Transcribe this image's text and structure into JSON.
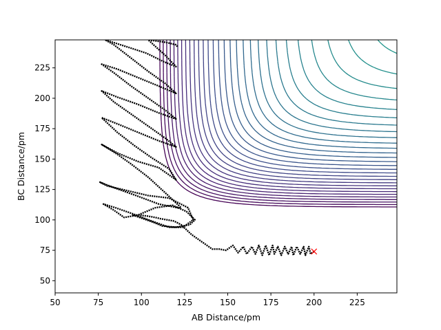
{
  "chart_data": {
    "type": "contour",
    "title": "",
    "xlabel": "AB Distance/pm",
    "ylabel": "BC Distance/pm",
    "xlim": [
      50,
      248
    ],
    "ylim": [
      40,
      248
    ],
    "xticks": [
      50,
      75,
      100,
      125,
      150,
      175,
      200,
      225
    ],
    "yticks": [
      50,
      75,
      100,
      125,
      150,
      175,
      200,
      225
    ],
    "colormap": "viridis",
    "contour_levels": 55,
    "series": [
      {
        "kind": "trajectory",
        "style": "black dotted line",
        "points": [
          [
            200,
            74
          ],
          [
            198,
            72
          ],
          [
            197,
            78
          ],
          [
            195,
            71
          ],
          [
            194,
            78
          ],
          [
            192,
            72
          ],
          [
            190,
            78
          ],
          [
            188,
            71
          ],
          [
            187,
            78
          ],
          [
            185,
            72
          ],
          [
            183,
            78
          ],
          [
            181,
            71
          ],
          [
            179,
            78
          ],
          [
            177,
            72
          ],
          [
            176,
            79
          ],
          [
            174,
            71
          ],
          [
            172,
            79
          ],
          [
            170,
            71
          ],
          [
            168,
            79
          ],
          [
            166,
            72
          ],
          [
            164,
            78
          ],
          [
            161,
            72
          ],
          [
            159,
            78
          ],
          [
            156,
            73
          ],
          [
            153,
            79
          ],
          [
            149,
            75
          ],
          [
            145,
            76
          ],
          [
            141,
            76
          ],
          [
            137,
            80
          ],
          [
            133,
            84
          ],
          [
            129,
            88
          ],
          [
            126,
            92
          ],
          [
            123,
            96
          ],
          [
            119,
            99
          ],
          [
            115,
            100
          ],
          [
            111,
            101
          ],
          [
            108,
            102
          ],
          [
            104,
            103
          ],
          [
            99,
            104
          ],
          [
            95,
            104
          ],
          [
            107,
            98
          ],
          [
            112,
            95
          ],
          [
            120,
            94
          ],
          [
            128,
            96
          ],
          [
            131,
            100
          ],
          [
            126,
            107
          ],
          [
            118,
            112
          ],
          [
            108,
            110
          ],
          [
            98,
            104
          ],
          [
            90,
            102
          ],
          [
            84,
            108
          ],
          [
            78,
            113
          ],
          [
            85,
            110
          ],
          [
            95,
            105
          ],
          [
            106,
            99
          ],
          [
            116,
            94
          ],
          [
            124,
            94
          ],
          [
            130,
            100
          ],
          [
            127,
            110
          ],
          [
            116,
            118
          ],
          [
            104,
            120
          ],
          [
            92,
            124
          ],
          [
            80,
            128
          ],
          [
            76,
            131
          ],
          [
            85,
            126
          ],
          [
            97,
            120
          ],
          [
            110,
            113
          ],
          [
            121,
            110
          ],
          [
            123,
            110
          ],
          [
            114,
            122
          ],
          [
            104,
            135
          ],
          [
            94,
            146
          ],
          [
            86,
            154
          ],
          [
            77,
            162
          ],
          [
            86,
            155
          ],
          [
            98,
            148
          ],
          [
            110,
            143
          ],
          [
            120,
            133
          ],
          [
            116,
            142
          ],
          [
            106,
            151
          ],
          [
            96,
            161
          ],
          [
            86,
            172
          ],
          [
            77,
            184
          ],
          [
            86,
            179
          ],
          [
            98,
            172
          ],
          [
            110,
            165
          ],
          [
            120,
            160
          ],
          [
            114,
            167
          ],
          [
            104,
            177
          ],
          [
            94,
            187
          ],
          [
            84,
            197
          ],
          [
            77,
            206
          ],
          [
            86,
            201
          ],
          [
            98,
            195
          ],
          [
            110,
            188
          ],
          [
            120,
            183
          ],
          [
            114,
            190
          ],
          [
            104,
            200
          ],
          [
            94,
            210
          ],
          [
            84,
            221
          ],
          [
            77,
            228
          ],
          [
            86,
            224
          ],
          [
            98,
            217
          ],
          [
            110,
            210
          ],
          [
            120,
            204
          ],
          [
            114,
            212
          ],
          [
            104,
            222
          ],
          [
            94,
            233
          ],
          [
            84,
            244
          ],
          [
            79,
            248
          ],
          [
            90,
            243
          ],
          [
            103,
            237
          ],
          [
            113,
            230
          ],
          [
            120,
            226
          ],
          [
            114,
            235
          ],
          [
            107,
            244
          ],
          [
            104,
            248
          ],
          [
            114,
            246
          ],
          [
            120,
            244
          ],
          [
            121,
            242
          ]
        ]
      },
      {
        "kind": "marker",
        "style": "red x",
        "points": [
          [
            200,
            74
          ]
        ]
      }
    ],
    "grid": false,
    "legend": "none"
  }
}
